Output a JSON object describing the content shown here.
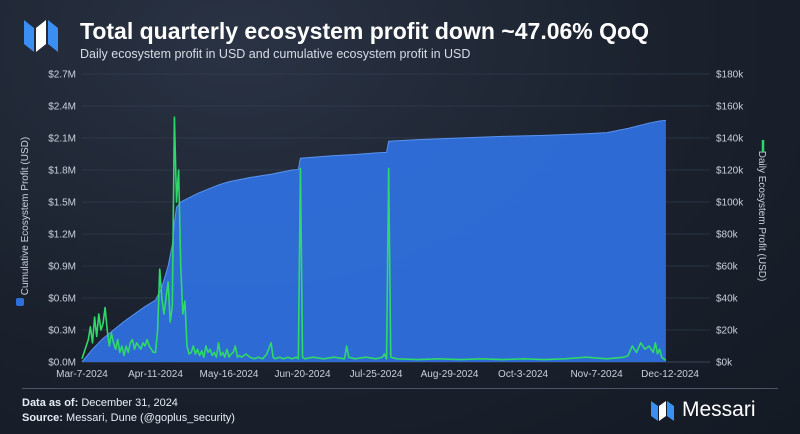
{
  "header": {
    "title": "Total quarterly ecosystem profit down ~47.06% QoQ",
    "subtitle": "Daily ecosystem profit in USD and cumulative ecosystem profit in USD"
  },
  "footer": {
    "data_as_of_label": "Data as of:",
    "data_as_of_value": "December 31, 2024",
    "source_label": "Source:",
    "source_value": "Messari, Dune (@goplus_security)",
    "brand": "Messari"
  },
  "colors": {
    "cumulative_fill": "#2f6fdc",
    "daily_line": "#2fd86a",
    "background": "#1c2431"
  },
  "chart_data": {
    "type": "area+line",
    "title": "Total quarterly ecosystem profit down ~47.06% QoQ",
    "subtitle": "Daily ecosystem profit in USD and cumulative ecosystem profit in USD",
    "x_start": "2024-03-07",
    "x_end": "2024-12-31",
    "x_ticks": [
      "Mar-7-2024",
      "Apr-11-2024",
      "May-16-2024",
      "Jun-20-2024",
      "Jul-25-2024",
      "Aug-29-2024",
      "Oct-3-2024",
      "Nov-7-2024",
      "Dec-12-2024"
    ],
    "left_axis": {
      "label": "Cumulative Ecosystem Profit (USD)",
      "range": [
        0,
        2700000
      ],
      "tick_values": [
        0,
        300000,
        600000,
        900000,
        1200000,
        1500000,
        1800000,
        2100000,
        2400000,
        2700000
      ],
      "tick_labels": [
        "$0.0M",
        "$0.3M",
        "$0.6M",
        "$0.9M",
        "$1.2M",
        "$1.5M",
        "$1.8M",
        "$2.1M",
        "$2.4M",
        "$2.7M"
      ]
    },
    "right_axis": {
      "label": "Daily Ecosystem Profit (USD)",
      "range": [
        0,
        180000
      ],
      "tick_values": [
        0,
        20000,
        40000,
        60000,
        80000,
        100000,
        120000,
        140000,
        160000,
        180000
      ],
      "tick_labels": [
        "$0k",
        "$20k",
        "$40k",
        "$60k",
        "$80k",
        "$100k",
        "$120k",
        "$140k",
        "$160k",
        "$180k"
      ]
    },
    "series": [
      {
        "name": "Cumulative Ecosystem Profit (USD)",
        "type": "area",
        "axis": "left",
        "points": [
          [
            0,
            0
          ],
          [
            5,
            120000
          ],
          [
            10,
            220000
          ],
          [
            15,
            300000
          ],
          [
            20,
            380000
          ],
          [
            25,
            450000
          ],
          [
            30,
            520000
          ],
          [
            35,
            580000
          ],
          [
            38,
            700000
          ],
          [
            41,
            900000
          ],
          [
            43,
            1100000
          ],
          [
            44,
            1300000
          ],
          [
            45,
            1450000
          ],
          [
            47,
            1500000
          ],
          [
            50,
            1530000
          ],
          [
            55,
            1580000
          ],
          [
            60,
            1620000
          ],
          [
            65,
            1660000
          ],
          [
            70,
            1690000
          ],
          [
            75,
            1710000
          ],
          [
            80,
            1730000
          ],
          [
            85,
            1745000
          ],
          [
            90,
            1760000
          ],
          [
            95,
            1780000
          ],
          [
            100,
            1800000
          ],
          [
            103,
            1805000
          ],
          [
            104,
            1910000
          ],
          [
            110,
            1920000
          ],
          [
            120,
            1935000
          ],
          [
            130,
            1945000
          ],
          [
            140,
            1960000
          ],
          [
            145,
            1965000
          ],
          [
            146,
            2070000
          ],
          [
            160,
            2085000
          ],
          [
            180,
            2100000
          ],
          [
            200,
            2115000
          ],
          [
            220,
            2125000
          ],
          [
            240,
            2140000
          ],
          [
            250,
            2150000
          ],
          [
            260,
            2190000
          ],
          [
            270,
            2240000
          ],
          [
            275,
            2260000
          ],
          [
            278,
            2265000
          ]
        ]
      },
      {
        "name": "Daily Ecosystem Profit (USD)",
        "type": "line",
        "axis": "right",
        "points": [
          [
            0,
            2000
          ],
          [
            1,
            6000
          ],
          [
            2,
            10000
          ],
          [
            3,
            14000
          ],
          [
            4,
            22000
          ],
          [
            5,
            12000
          ],
          [
            6,
            28000
          ],
          [
            7,
            16000
          ],
          [
            8,
            30000
          ],
          [
            9,
            20000
          ],
          [
            10,
            24000
          ],
          [
            11,
            34000
          ],
          [
            12,
            20000
          ],
          [
            13,
            10000
          ],
          [
            14,
            18000
          ],
          [
            15,
            12000
          ],
          [
            16,
            8000
          ],
          [
            17,
            14000
          ],
          [
            18,
            6000
          ],
          [
            19,
            10000
          ],
          [
            20,
            4000
          ],
          [
            21,
            10000
          ],
          [
            22,
            6000
          ],
          [
            23,
            12000
          ],
          [
            24,
            14000
          ],
          [
            25,
            8000
          ],
          [
            26,
            12000
          ],
          [
            27,
            10000
          ],
          [
            28,
            8000
          ],
          [
            29,
            12000
          ],
          [
            30,
            10000
          ],
          [
            31,
            14000
          ],
          [
            32,
            10000
          ],
          [
            33,
            8000
          ],
          [
            34,
            6000
          ],
          [
            35,
            6000
          ],
          [
            36,
            20000
          ],
          [
            37,
            58000
          ],
          [
            38,
            40000
          ],
          [
            39,
            30000
          ],
          [
            40,
            40000
          ],
          [
            41,
            50000
          ],
          [
            42,
            25000
          ],
          [
            43,
            35000
          ],
          [
            44,
            153000
          ],
          [
            45,
            100000
          ],
          [
            46,
            120000
          ],
          [
            47,
            60000
          ],
          [
            48,
            30000
          ],
          [
            49,
            38000
          ],
          [
            50,
            10000
          ],
          [
            51,
            5000
          ],
          [
            52,
            6000
          ],
          [
            53,
            10000
          ],
          [
            54,
            5000
          ],
          [
            55,
            8000
          ],
          [
            56,
            4000
          ],
          [
            57,
            7000
          ],
          [
            58,
            3000
          ],
          [
            59,
            10000
          ],
          [
            60,
            6000
          ],
          [
            61,
            8000
          ],
          [
            62,
            4000
          ],
          [
            63,
            6000
          ],
          [
            64,
            3000
          ],
          [
            65,
            12000
          ],
          [
            66,
            4000
          ],
          [
            67,
            6000
          ],
          [
            68,
            3000
          ],
          [
            69,
            8000
          ],
          [
            70,
            3000
          ],
          [
            71,
            5000
          ],
          [
            72,
            6000
          ],
          [
            73,
            10000
          ],
          [
            74,
            3000
          ],
          [
            75,
            4000
          ],
          [
            76,
            3000
          ],
          [
            78,
            5000
          ],
          [
            80,
            3000
          ],
          [
            82,
            2000
          ],
          [
            84,
            3000
          ],
          [
            86,
            2000
          ],
          [
            88,
            5000
          ],
          [
            90,
            12000
          ],
          [
            91,
            3000
          ],
          [
            92,
            2000
          ],
          [
            94,
            3000
          ],
          [
            96,
            2000
          ],
          [
            98,
            3000
          ],
          [
            100,
            2000
          ],
          [
            102,
            3000
          ],
          [
            103,
            2000
          ],
          [
            104,
            121000
          ],
          [
            105,
            3000
          ],
          [
            106,
            2000
          ],
          [
            110,
            3000
          ],
          [
            115,
            2000
          ],
          [
            120,
            3000
          ],
          [
            125,
            2000
          ],
          [
            126,
            10000
          ],
          [
            127,
            3000
          ],
          [
            130,
            2000
          ],
          [
            135,
            3000
          ],
          [
            140,
            2000
          ],
          [
            143,
            3000
          ],
          [
            144,
            5000
          ],
          [
            145,
            2000
          ],
          [
            146,
            121000
          ],
          [
            147,
            3000
          ],
          [
            150,
            2000
          ],
          [
            160,
            1500
          ],
          [
            170,
            2000
          ],
          [
            180,
            1500
          ],
          [
            190,
            2000
          ],
          [
            200,
            1500
          ],
          [
            210,
            2000
          ],
          [
            220,
            1500
          ],
          [
            230,
            2000
          ],
          [
            240,
            3000
          ],
          [
            250,
            2000
          ],
          [
            258,
            3000
          ],
          [
            260,
            4000
          ],
          [
            262,
            10000
          ],
          [
            264,
            6000
          ],
          [
            266,
            12000
          ],
          [
            268,
            8000
          ],
          [
            270,
            10000
          ],
          [
            272,
            6000
          ],
          [
            273,
            12000
          ],
          [
            274,
            5000
          ],
          [
            275,
            8000
          ],
          [
            276,
            3000
          ],
          [
            278,
            1000
          ]
        ]
      }
    ],
    "x_day_index_note": "day offsets from 2024-03-07"
  }
}
